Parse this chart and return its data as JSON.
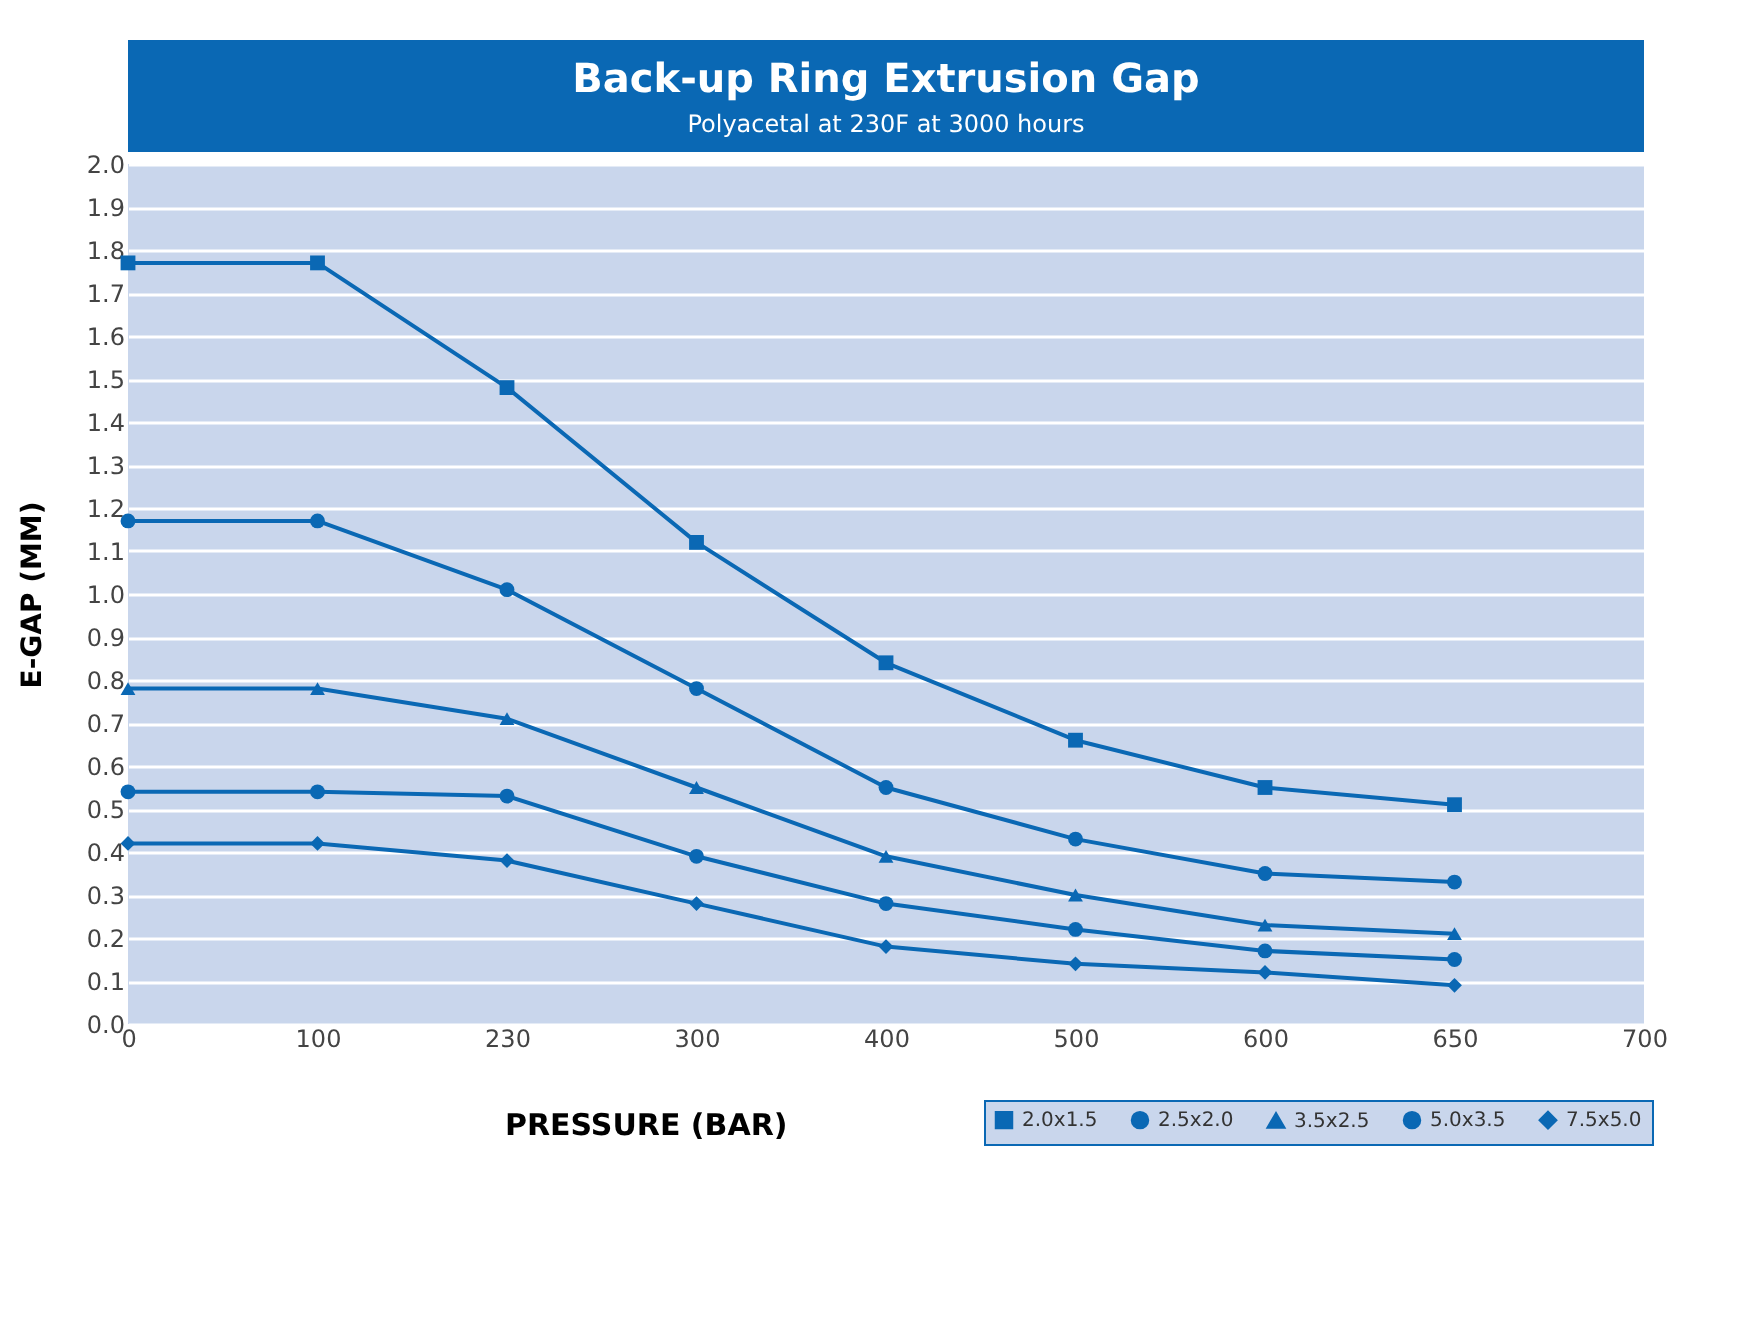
{
  "chart_data": {
    "type": "line",
    "title": "Back-up Ring Extrusion Gap",
    "subtitle": "Polyacetal at 230F at 3000 hours",
    "xlabel": "PRESSURE (BAR)",
    "ylabel": "E-GAP (MM)",
    "categories": [
      "0",
      "100",
      "230",
      "300",
      "400",
      "500",
      "600",
      "650",
      "700"
    ],
    "series": [
      {
        "name": "2.0x1.5",
        "color": "#0a68b4",
        "marker": "square",
        "values": [
          1.77,
          1.77,
          1.48,
          1.12,
          0.84,
          0.66,
          0.55,
          0.51,
          null
        ]
      },
      {
        "name": "2.5x2.0",
        "color": "#0a68b4",
        "marker": "circle",
        "values": [
          1.17,
          1.17,
          1.01,
          0.78,
          0.55,
          0.43,
          0.35,
          0.33,
          null
        ]
      },
      {
        "name": "3.5x2.5",
        "color": "#0a68b4",
        "marker": "triangle",
        "values": [
          0.78,
          0.78,
          0.71,
          0.55,
          0.39,
          0.3,
          0.23,
          0.21,
          null
        ]
      },
      {
        "name": "5.0x3.5",
        "color": "#0a68b4",
        "marker": "circle",
        "values": [
          0.54,
          0.54,
          0.53,
          0.39,
          0.28,
          0.22,
          0.17,
          0.15,
          null
        ]
      },
      {
        "name": "7.5x5.0",
        "color": "#0a68b4",
        "marker": "diamond",
        "values": [
          0.42,
          0.42,
          0.38,
          0.28,
          0.18,
          0.14,
          0.12,
          0.09,
          null
        ]
      }
    ],
    "ylim": [
      0,
      2.0
    ],
    "yticks": [
      {
        "value": 0,
        "label": "0.0"
      },
      0.1,
      0.2,
      0.3,
      0.4,
      0.5,
      0.6,
      0.7,
      0.8,
      0.9,
      {
        "value": 1,
        "label": "1.0"
      },
      1.1,
      1.2,
      1.3,
      1.4,
      1.5,
      1.6,
      1.7,
      1.8,
      1.9,
      {
        "value": 2,
        "label": "2.0"
      }
    ],
    "grid": "y",
    "legend": "bottom right",
    "line_style": "solid"
  }
}
